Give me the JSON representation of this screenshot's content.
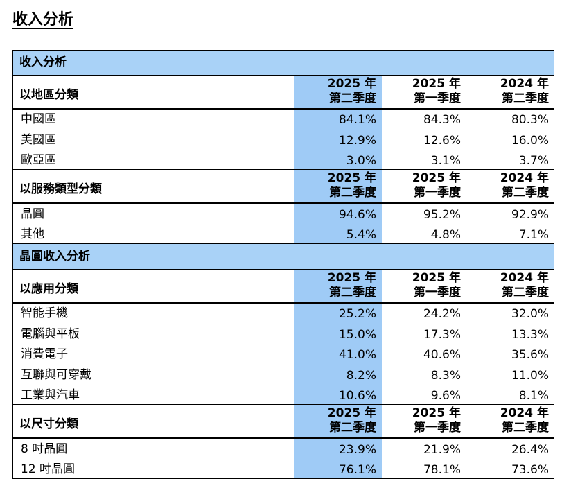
{
  "title": "收入分析",
  "sections": [
    {
      "heading": "收入分析",
      "groups": [
        {
          "label": "以地區分類",
          "columns": [
            {
              "year": "2025 年",
              "quarter": "第二季度"
            },
            {
              "year": "2025 年",
              "quarter": "第一季度"
            },
            {
              "year": "2024 年",
              "quarter": "第二季度"
            }
          ],
          "rows": [
            [
              "中國區",
              "84.1%",
              "84.3%",
              "80.3%"
            ],
            [
              "美國區",
              "12.9%",
              "12.6%",
              "16.0%"
            ],
            [
              "歐亞區",
              "3.0%",
              "3.1%",
              "3.7%"
            ]
          ]
        },
        {
          "label": "以服務類型分類",
          "columns": [
            {
              "year": "2025 年",
              "quarter": "第二季度"
            },
            {
              "year": "2025 年",
              "quarter": "第一季度"
            },
            {
              "year": "2024 年",
              "quarter": "第二季度"
            }
          ],
          "rows": [
            [
              "晶圓",
              "94.6%",
              "95.2%",
              "92.9%"
            ],
            [
              "其他",
              "5.4%",
              "4.8%",
              "7.1%"
            ]
          ]
        }
      ]
    },
    {
      "heading": "晶圓收入分析",
      "groups": [
        {
          "label": "以應用分類",
          "columns": [
            {
              "year": "2025 年",
              "quarter": "第二季度"
            },
            {
              "year": "2025 年",
              "quarter": "第一季度"
            },
            {
              "year": "2024 年",
              "quarter": "第二季度"
            }
          ],
          "rows": [
            [
              "智能手機",
              "25.2%",
              "24.2%",
              "32.0%"
            ],
            [
              "電腦與平板",
              "15.0%",
              "17.3%",
              "13.3%"
            ],
            [
              "消費電子",
              "41.0%",
              "40.6%",
              "35.6%"
            ],
            [
              "互聯與可穿戴",
              "8.2%",
              "8.3%",
              "11.0%"
            ],
            [
              "工業與汽車",
              "10.6%",
              "9.6%",
              "8.1%"
            ]
          ]
        },
        {
          "label": "以尺寸分類",
          "columns": [
            {
              "year": "2025 年",
              "quarter": "第二季度"
            },
            {
              "year": "2025 年",
              "quarter": "第一季度"
            },
            {
              "year": "2024 年",
              "quarter": "第二季度"
            }
          ],
          "rows": [
            [
              "8 吋晶圓",
              "23.9%",
              "21.9%",
              "26.4%"
            ],
            [
              "12 吋晶圓",
              "76.1%",
              "78.1%",
              "73.6%"
            ]
          ]
        }
      ]
    }
  ]
}
